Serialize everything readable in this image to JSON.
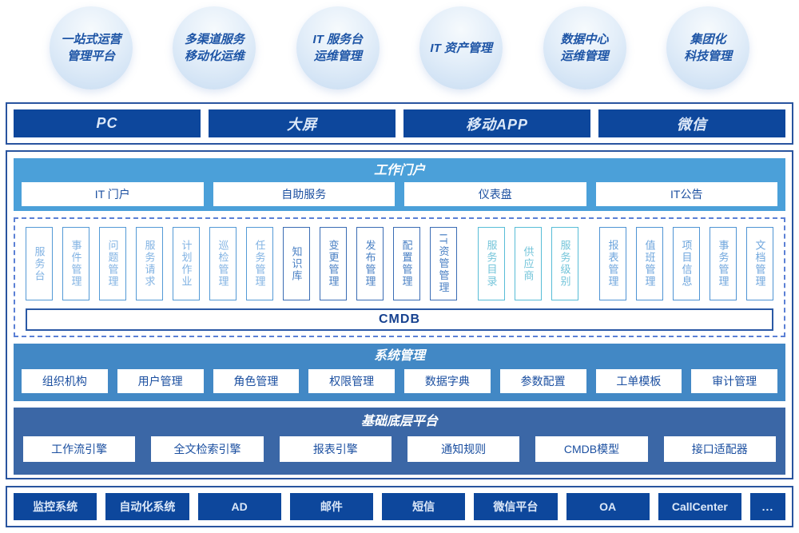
{
  "bubbles": [
    {
      "label": "一站式运营\n管理平台"
    },
    {
      "label": "多渠道服务\n移动化运维"
    },
    {
      "label": "IT 服务台\n运维管理"
    },
    {
      "label": "IT 资产管理"
    },
    {
      "label": "数据中心\n运维管理"
    },
    {
      "label": "集团化\n科技管理"
    }
  ],
  "channels": {
    "items": [
      "PC",
      "大屏",
      "移动APP",
      "微信"
    ]
  },
  "portal": {
    "title": "工作门户",
    "items": [
      "IT 门户",
      "自助服务",
      "仪表盘",
      "IT公告"
    ]
  },
  "modules": {
    "cmdb_label": "CMDB",
    "columns": [
      {
        "label": "服务台",
        "group": "light"
      },
      {
        "label": "事件管理",
        "group": "light"
      },
      {
        "label": "问题管理",
        "group": "light"
      },
      {
        "label": "服务请求",
        "group": "light"
      },
      {
        "label": "计划作业",
        "group": "light"
      },
      {
        "label": "巡检管理",
        "group": "light"
      },
      {
        "label": "任务管理",
        "group": "light"
      },
      {
        "label": "知识库",
        "group": "dark"
      },
      {
        "label": "变更管理",
        "group": "dark"
      },
      {
        "label": "发布管理",
        "group": "dark"
      },
      {
        "label": "配置管理",
        "group": "dark"
      },
      {
        "label": "IT资管管理",
        "group": "dark"
      },
      {
        "label": "服务目录",
        "group": "teal"
      },
      {
        "label": "供应商",
        "group": "teal"
      },
      {
        "label": "服务级别",
        "group": "teal"
      },
      {
        "label": "报表管理",
        "group": "light2"
      },
      {
        "label": "值班管理",
        "group": "light2"
      },
      {
        "label": "项目信息",
        "group": "light2"
      },
      {
        "label": "事务管理",
        "group": "light2"
      },
      {
        "label": "文档管理",
        "group": "light2"
      }
    ]
  },
  "system": {
    "title": "系统管理",
    "items": [
      "组织机构",
      "用户管理",
      "角色管理",
      "权限管理",
      "数据字典",
      "参数配置",
      "工单模板",
      "审计管理"
    ]
  },
  "platform": {
    "title": "基础底层平台",
    "items": [
      "工作流引擎",
      "全文检索引擎",
      "报表引擎",
      "通知规则",
      "CMDB模型",
      "接口适配器"
    ]
  },
  "integrations": {
    "items": [
      "监控系统",
      "自动化系统",
      "AD",
      "邮件",
      "短信",
      "微信平台",
      "OA",
      "CallCenter",
      {
        "label": "...",
        "group": "narrow"
      }
    ]
  },
  "colors": {
    "navy": "#0d479c",
    "frame_border": "#29549f",
    "portal_bg": "#4ba0d9",
    "system_bg": "#4288c5",
    "platform_bg": "#3b67a6",
    "dashed_border": "#5b80d5",
    "box_text": "#1b4fa0",
    "teal_accent": "#58bdd7"
  }
}
